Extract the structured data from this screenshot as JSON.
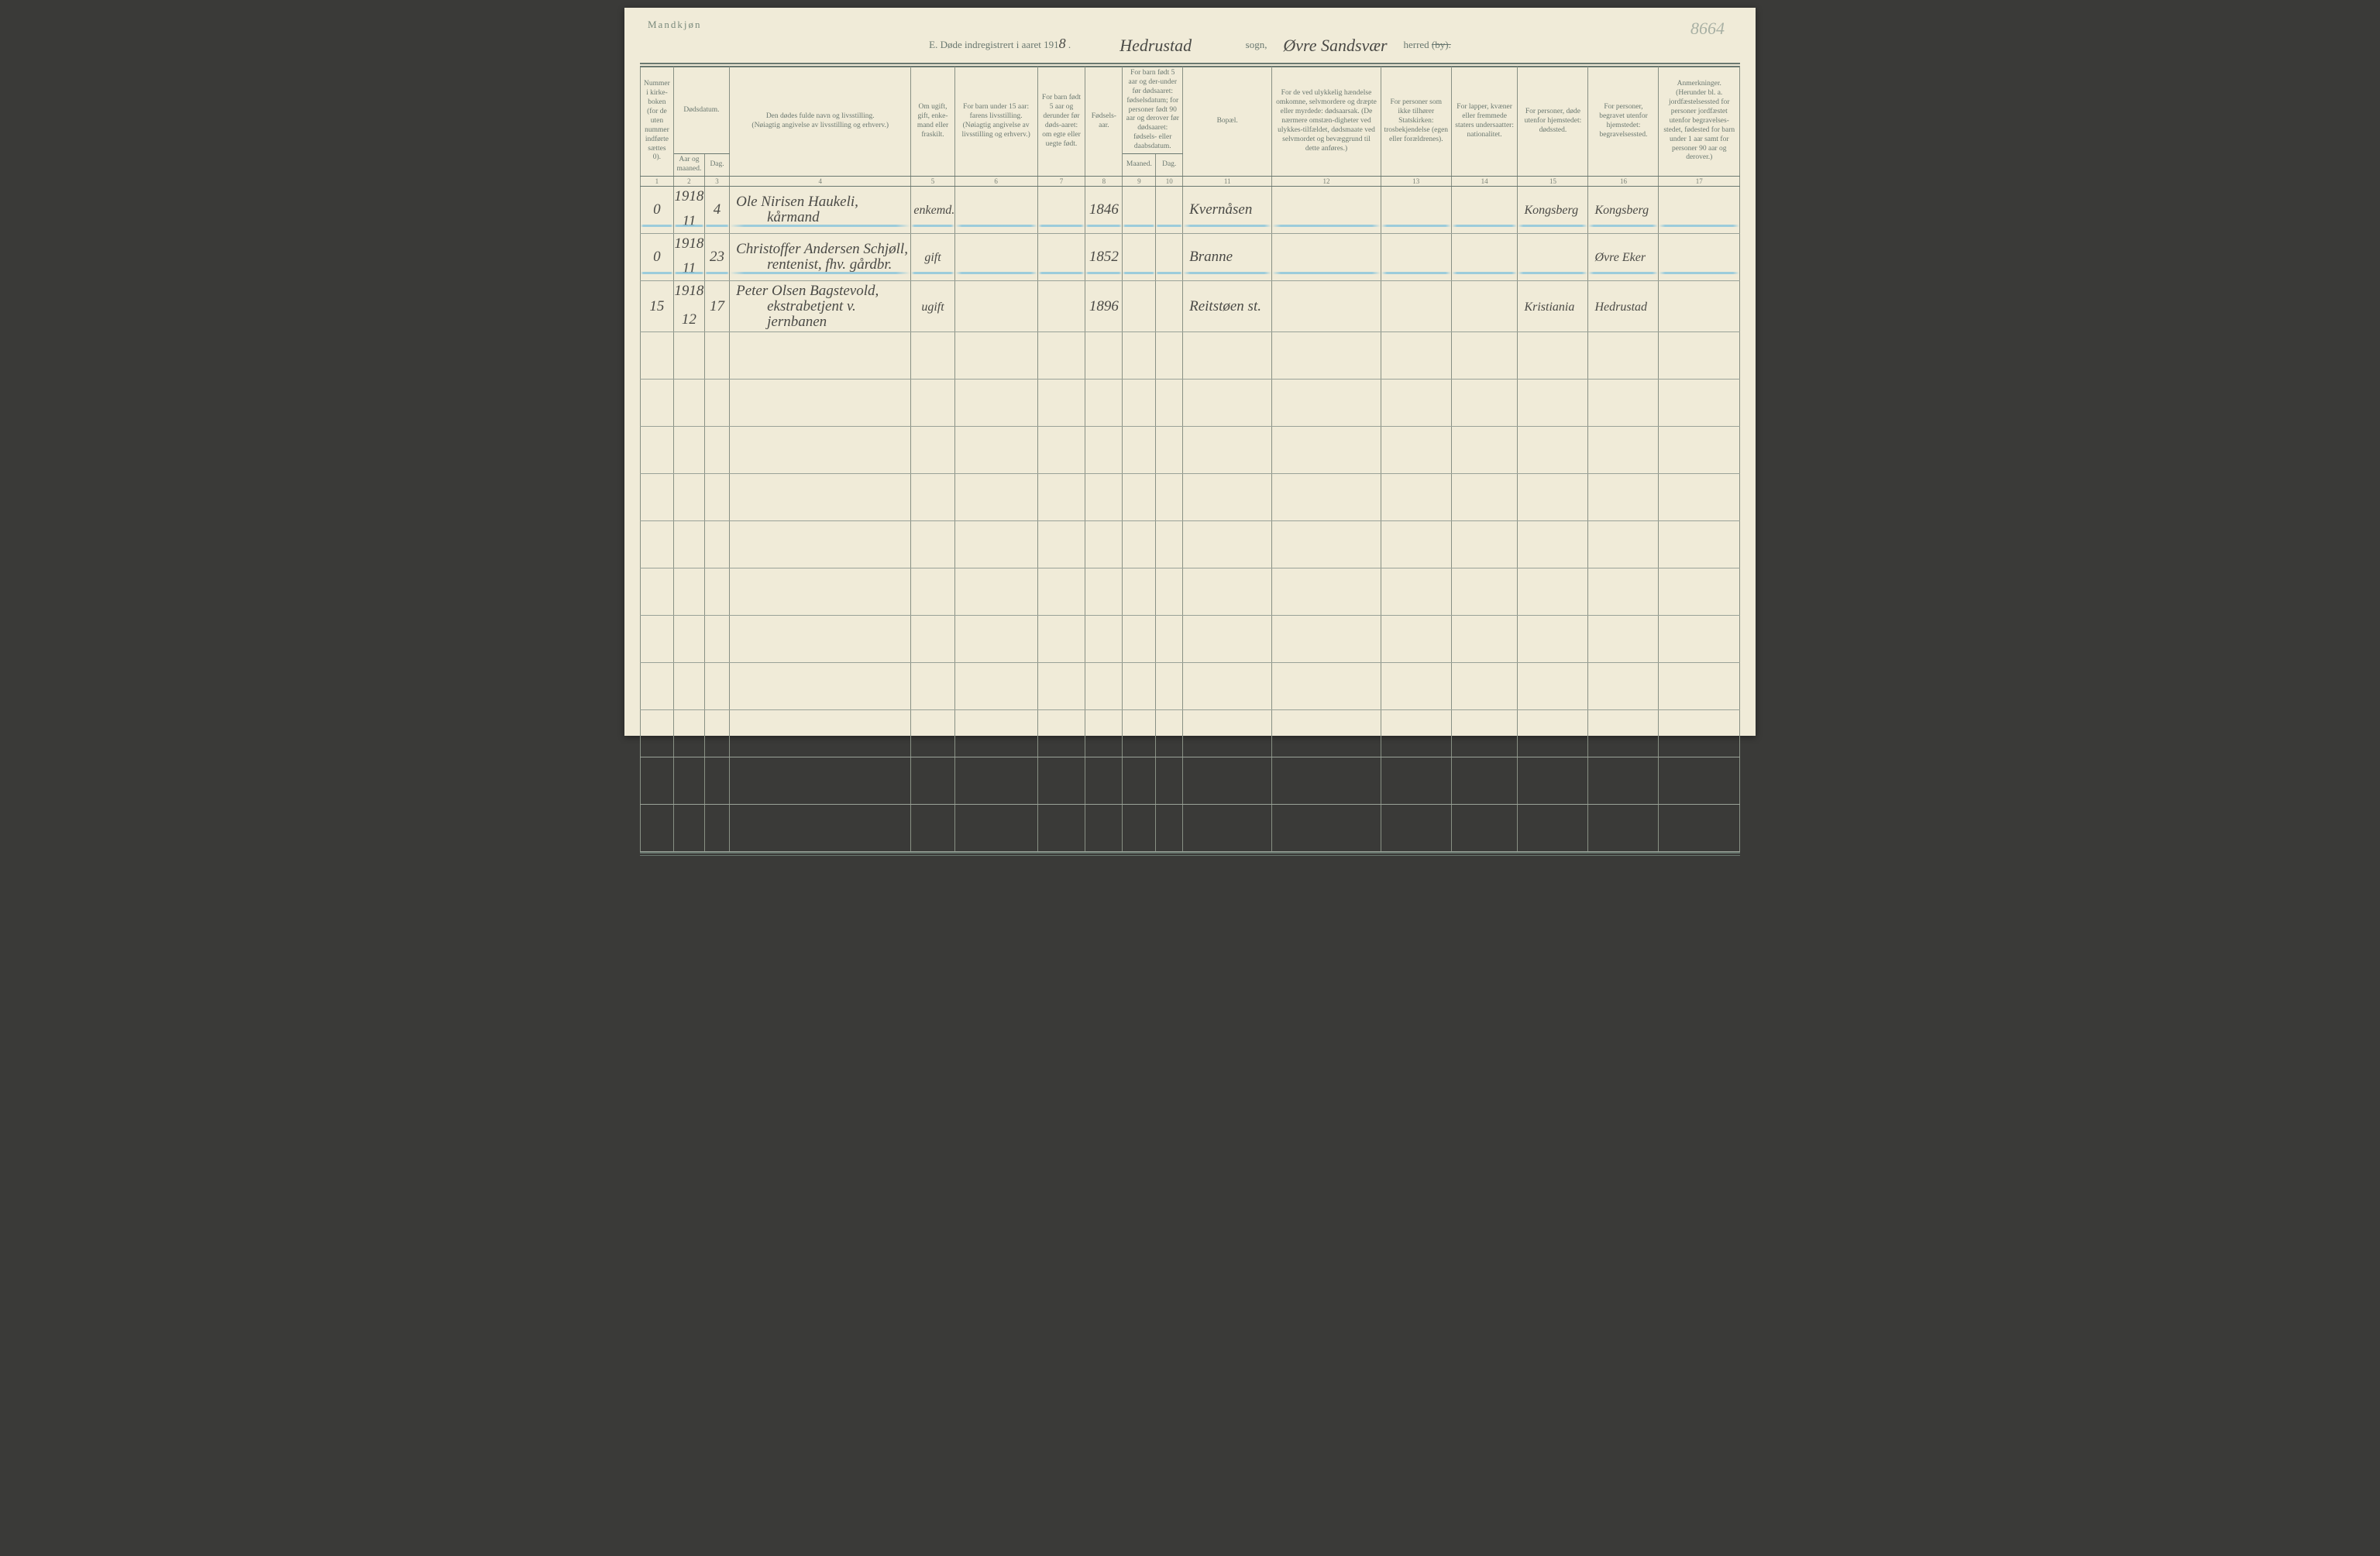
{
  "header": {
    "gender": "Mandkjøn",
    "title_prefix": "E.  Døde indregistrert i aaret 191",
    "year_suffix": "8",
    "dot": ".",
    "sogn_hw": "Hedrustad",
    "sogn_label": "sogn,",
    "herred_hw": "Øvre Sandsvær",
    "herred_label": "herred",
    "by_strike": "(by).",
    "page_no": "8664"
  },
  "columns": {
    "c1": "Nummer i kirke-boken (for de uten nummer indførte sættes 0).",
    "c2a": "Dødsdatum.",
    "c2b": "Aar og maaned.",
    "c2c": "Dag.",
    "c4a": "Den dødes fulde navn og livsstilling.",
    "c4b": "(Nøiagtig angivelse av livsstilling og erhverv.)",
    "c5": "Om ugift, gift, enke-mand eller fraskilt.",
    "c6a": "For barn under 15 aar: farens livsstilling.",
    "c6b": "(Nøiagtig angivelse av livsstilling og erhverv.)",
    "c7": "For barn født 5 aar og derunder før døds-aaret: om egte eller uegte født.",
    "c8": "Fødsels-aar.",
    "c9": "For barn født 5 aar og der-under før dødsaaret: fødselsdatum; for personer født 90 aar og derover før dødsaaret: fødsels- eller daabsdatum.",
    "c9a": "Maaned.",
    "c9b": "Dag.",
    "c11": "Bopæl.",
    "c12": "For de ved ulykkelig hændelse omkomne, selvmordere og dræpte eller myrdede: dødsaarsak. (De nærmere omstæn-digheter ved ulykkes-tilfældet, dødsmaate ved selvmordet og bevæggrund til dette anføres.)",
    "c13": "For personer som ikke tilhører Statskirken: trosbekjendelse (egen eller forældrenes).",
    "c14": "For lapper, kvæner eller fremmede staters undersaatter: nationalitet.",
    "c15": "For personer, døde utenfor hjemstedet: dødssted.",
    "c16": "For personer, begravet utenfor hjemstedet: begravelsessted.",
    "c17": "Anmerkninger. (Herunder bl. a. jordfæstelsessted for personer jordfæstet utenfor begravelses-stedet, fødested for barn under 1 aar samt for personer 90 aar og derover.)"
  },
  "colnums": [
    "1",
    "2",
    "3",
    "4",
    "5",
    "6",
    "7",
    "8",
    "9",
    "10",
    "11",
    "12",
    "13",
    "14",
    "15",
    "16",
    "17"
  ],
  "rows": [
    {
      "num": "0",
      "year": "1918",
      "month": "11",
      "day": "4",
      "name_l1": "Ole Nirisen Haukeli,",
      "name_l2": "kårmand",
      "status": "enkemd.",
      "birth": "1846",
      "residence": "Kvernåsen",
      "deathplace": "Kongsberg",
      "burial": "Kongsberg",
      "blue": true
    },
    {
      "num": "0",
      "year": "1918",
      "month": "11",
      "day": "23",
      "name_l1": "Christoffer Andersen Schjøll,",
      "name_l2": "rentenist, fhv. gårdbr.",
      "status": "gift",
      "birth": "1852",
      "residence": "Branne",
      "deathplace": "",
      "burial": "Øvre Eker",
      "blue": true
    },
    {
      "num": "15",
      "year": "1918",
      "month": "12",
      "day": "17",
      "name_l1": "Peter Olsen Bagstevold,",
      "name_l2": "ekstrabetjent v. jernbanen",
      "status": "ugift",
      "birth": "1896",
      "residence": "Reitstøen st.",
      "deathplace": "Kristiania",
      "burial": "Hedrustad",
      "blue": false
    }
  ],
  "layout": {
    "col_widths_pct": [
      3.2,
      3.0,
      2.4,
      17.5,
      4.2,
      8.0,
      4.6,
      3.6,
      3.2,
      2.6,
      8.6,
      10.5,
      6.8,
      6.4,
      6.8,
      6.8,
      7.8
    ],
    "empty_rows": 11
  },
  "style": {
    "paper_bg": "#f0ebd8",
    "rule_color": "#6a7870",
    "text_color": "#6a7870",
    "hw_color": "#3a3a36",
    "blue_color": "#78bedc"
  }
}
